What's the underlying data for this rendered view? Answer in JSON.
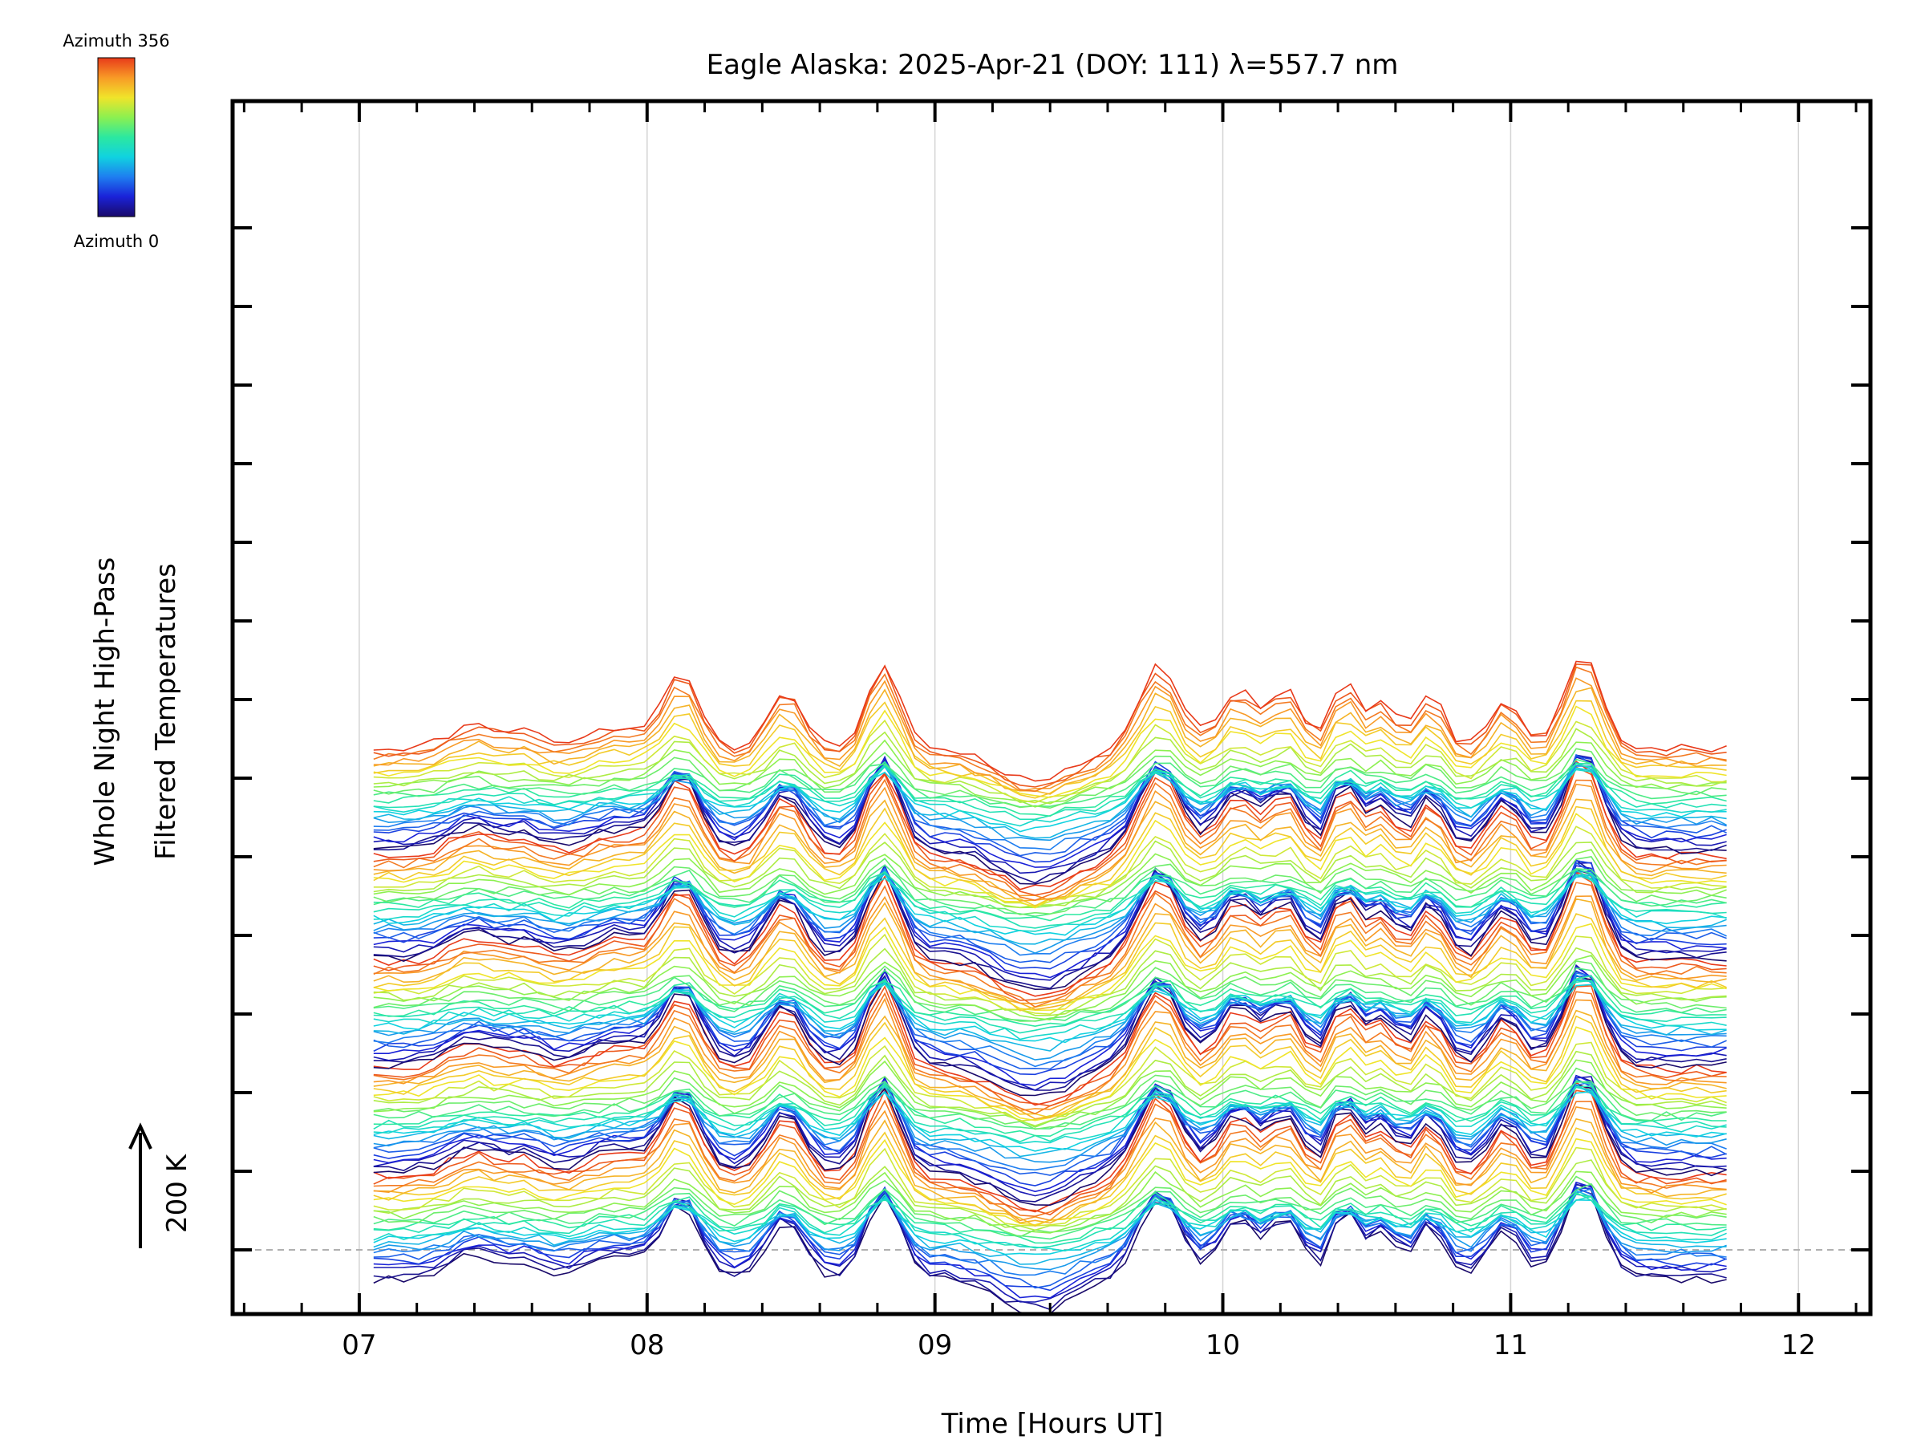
{
  "chart_data": {
    "type": "line",
    "title": "Eagle Alaska: 2025-Apr-21 (DOY: 111) λ=557.7 nm",
    "xlabel": "Time [Hours UT]",
    "ylabel_lines": [
      "Whole Night High-Pass",
      "Filtered Temperatures"
    ],
    "x_ticks": [
      "07",
      "08",
      "09",
      "10",
      "11",
      "12"
    ],
    "xlim": [
      6.56,
      12.25
    ],
    "x_range_data": [
      7.05,
      11.75
    ],
    "scale_bar_label": "200 K",
    "scale_bar_value_K": 200,
    "colorbar": {
      "top_label": "Azimuth 356",
      "bottom_label": "Azimuth 0",
      "min": 0,
      "max": 356,
      "colors": [
        "#1a0a6a",
        "#1a22d8",
        "#1e7ef0",
        "#10d2e0",
        "#2ce8a0",
        "#8cf050",
        "#f0e42a",
        "#f89a26",
        "#e83a1a"
      ]
    },
    "offset_per_trace_K": 40,
    "grid": "vertical",
    "legend": "colorbar top-left",
    "events_hours": [
      {
        "t": 7.4,
        "amp": 50,
        "w": 0.12
      },
      {
        "t": 7.58,
        "amp": 30,
        "w": 0.08
      },
      {
        "t": 7.9,
        "amp": 45,
        "w": 0.15
      },
      {
        "t": 8.12,
        "amp": 150,
        "w": 0.09
      },
      {
        "t": 8.48,
        "amp": 120,
        "w": 0.09
      },
      {
        "t": 8.82,
        "amp": 180,
        "w": 0.08
      },
      {
        "t": 9.35,
        "amp": -70,
        "w": 0.18
      },
      {
        "t": 9.78,
        "amp": 170,
        "w": 0.1
      },
      {
        "t": 10.05,
        "amp": 120,
        "w": 0.09
      },
      {
        "t": 10.22,
        "amp": 120,
        "w": 0.08
      },
      {
        "t": 10.42,
        "amp": 140,
        "w": 0.06
      },
      {
        "t": 10.55,
        "amp": 100,
        "w": 0.07
      },
      {
        "t": 10.72,
        "amp": 110,
        "w": 0.07
      },
      {
        "t": 10.98,
        "amp": 100,
        "w": 0.08
      },
      {
        "t": 11.25,
        "amp": 200,
        "w": 0.09
      }
    ],
    "series": [
      {
        "start": 7.05,
        "end": 11.75,
        "level_K": -120,
        "azimuth": 0
      }
    ]
  }
}
